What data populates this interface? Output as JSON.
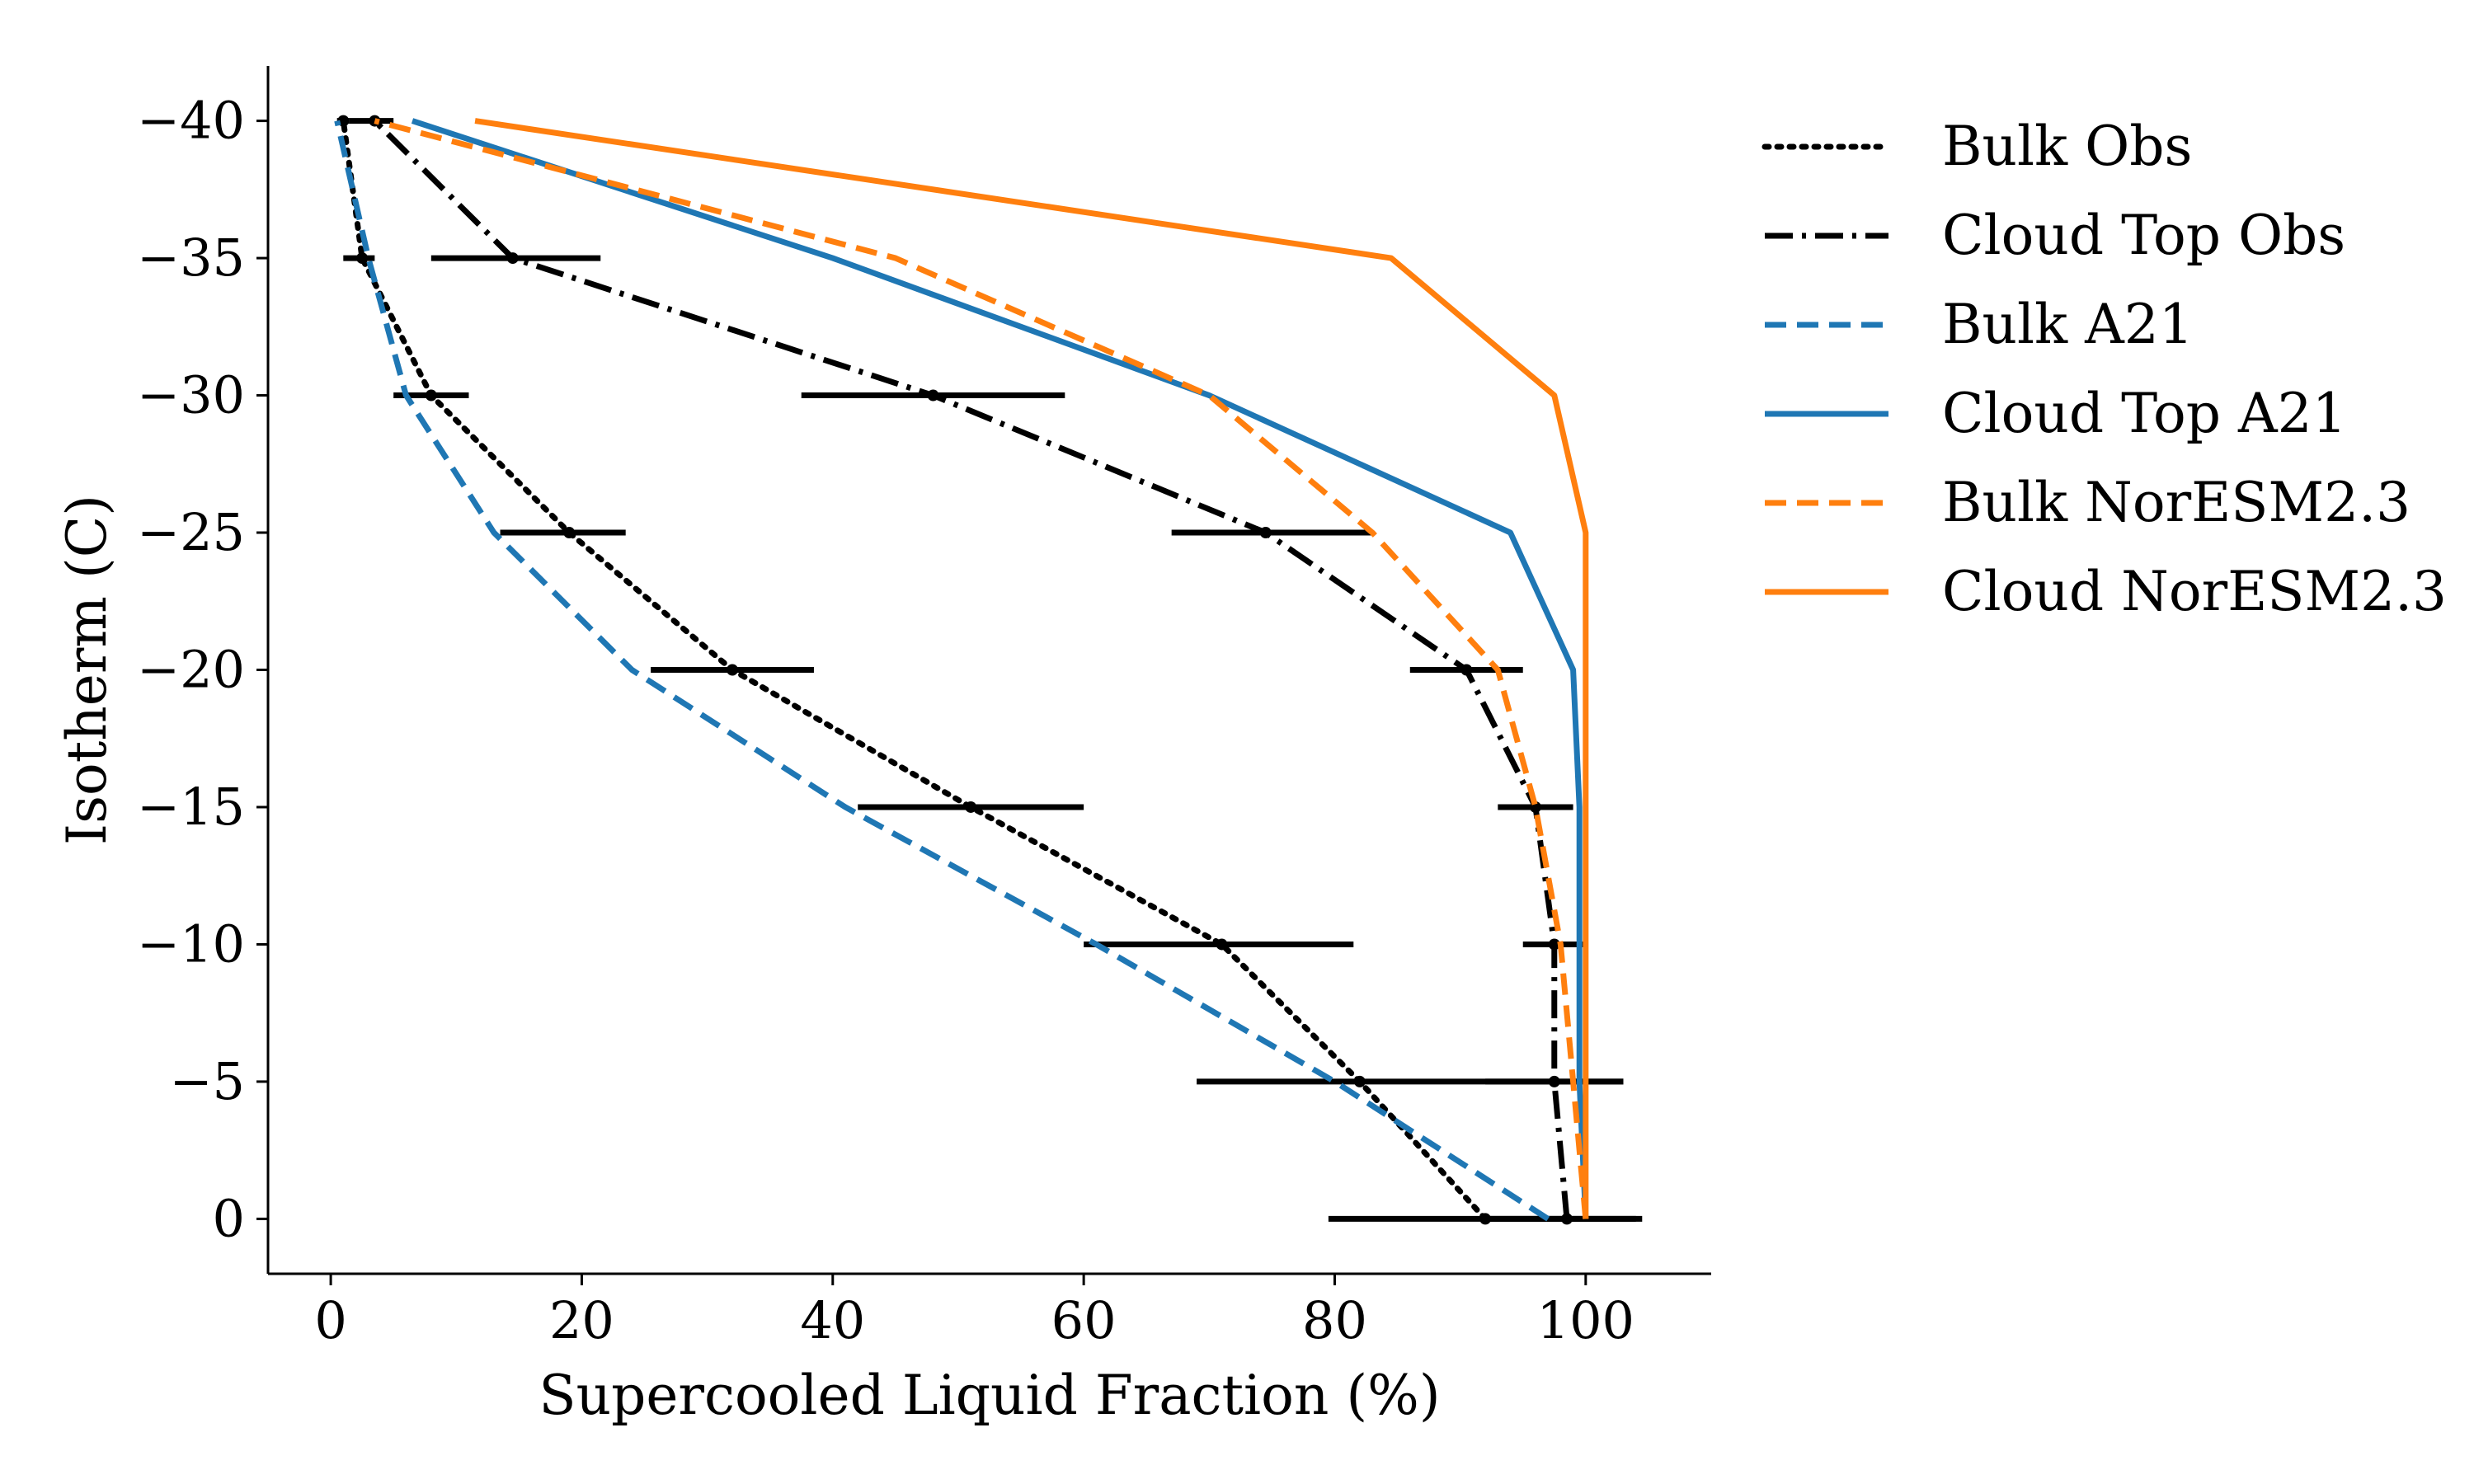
{
  "chart_data": {
    "type": "line",
    "title": "",
    "xlabel": "Supercooled Liquid Fraction (%)",
    "ylabel": "Isotherm (C)",
    "xlim": [
      -5,
      110
    ],
    "ylim": [
      2,
      -42
    ],
    "y_inverted": true,
    "x_ticks": [
      0,
      20,
      40,
      60,
      80,
      100
    ],
    "x_tick_labels": [
      "0",
      "20",
      "40",
      "60",
      "80",
      "100"
    ],
    "y_ticks": [
      0,
      -5,
      -10,
      -15,
      -20,
      -25,
      -30,
      -35,
      -40
    ],
    "y_tick_labels": [
      "0",
      "−5",
      "−10",
      "−15",
      "−20",
      "−25",
      "−30",
      "−35",
      "−40"
    ],
    "grid": false,
    "legend_position": "outside-right",
    "series": [
      {
        "name": "Bulk Obs",
        "color": "#000000",
        "style": "dotted",
        "points": [
          [
            92,
            0
          ],
          [
            82,
            -5
          ],
          [
            71,
            -10
          ],
          [
            51,
            -15
          ],
          [
            32,
            -20
          ],
          [
            19,
            -25
          ],
          [
            8,
            -30
          ],
          [
            2.5,
            -35
          ],
          [
            1,
            -40
          ]
        ],
        "error_bars": [
          [
            79.5,
            104.5
          ],
          [
            69,
            103
          ],
          [
            60,
            81.5
          ],
          [
            42,
            60
          ],
          [
            25.5,
            38.5
          ],
          [
            13.5,
            23.5
          ],
          [
            5,
            11
          ],
          [
            1,
            3.5
          ],
          [
            0.5,
            1.5
          ]
        ]
      },
      {
        "name": "Cloud Top Obs",
        "color": "#000000",
        "style": "dashdot",
        "points": [
          [
            98.5,
            0
          ],
          [
            97.5,
            -5
          ],
          [
            97.5,
            -10
          ],
          [
            96,
            -15
          ],
          [
            90.5,
            -20
          ],
          [
            74.5,
            -25
          ],
          [
            48,
            -30
          ],
          [
            14.5,
            -35
          ],
          [
            3.5,
            -40
          ]
        ],
        "error_bars": [
          [
            92,
            104
          ],
          [
            92,
            103
          ],
          [
            95,
            100
          ],
          [
            93,
            99
          ],
          [
            86,
            95
          ],
          [
            67,
            83
          ],
          [
            37.5,
            58.5
          ],
          [
            8,
            21.5
          ],
          [
            1.5,
            5
          ]
        ]
      },
      {
        "name": "Bulk A21",
        "color": "#1f77b4",
        "style": "dashed",
        "points": [
          [
            97,
            0
          ],
          [
            80,
            -5
          ],
          [
            61,
            -10
          ],
          [
            41,
            -15
          ],
          [
            24,
            -20
          ],
          [
            13,
            -25
          ],
          [
            6,
            -30
          ],
          [
            3,
            -35
          ],
          [
            0.5,
            -40
          ]
        ]
      },
      {
        "name": "Cloud Top A21",
        "color": "#1f77b4",
        "style": "solid",
        "points": [
          [
            100,
            0
          ],
          [
            99.5,
            -5
          ],
          [
            99.5,
            -10
          ],
          [
            99.5,
            -15
          ],
          [
            99,
            -20
          ],
          [
            94,
            -25
          ],
          [
            70,
            -30
          ],
          [
            40,
            -35
          ],
          [
            6.5,
            -40
          ]
        ]
      },
      {
        "name": "Bulk NorESM2.3",
        "color": "#ff7f0e",
        "style": "dashed",
        "points": [
          [
            100,
            0
          ],
          [
            99,
            -5
          ],
          [
            98,
            -10
          ],
          [
            96,
            -15
          ],
          [
            93,
            -20
          ],
          [
            83,
            -25
          ],
          [
            70,
            -30
          ],
          [
            45,
            -35
          ],
          [
            3.5,
            -40
          ]
        ]
      },
      {
        "name": "Cloud NorESM2.3",
        "color": "#ff7f0e",
        "style": "solid",
        "points": [
          [
            100,
            0
          ],
          [
            100,
            -5
          ],
          [
            100,
            -10
          ],
          [
            100,
            -15
          ],
          [
            100,
            -20
          ],
          [
            100,
            -25
          ],
          [
            97.5,
            -30
          ],
          [
            84.5,
            -35
          ],
          [
            11.5,
            -40
          ]
        ]
      }
    ]
  }
}
